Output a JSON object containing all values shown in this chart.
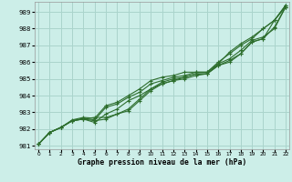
{
  "xlabel": "Graphe pression niveau de la mer (hPa)",
  "background_color": "#cceee8",
  "grid_color": "#aad4cc",
  "line_color": "#2d6e2d",
  "xlim": [
    -0.3,
    22.3
  ],
  "ylim": [
    980.8,
    989.6
  ],
  "yticks": [
    981,
    982,
    983,
    984,
    985,
    986,
    987,
    988,
    989
  ],
  "xticks": [
    0,
    1,
    2,
    3,
    4,
    5,
    6,
    7,
    8,
    9,
    10,
    11,
    12,
    13,
    14,
    15,
    16,
    17,
    18,
    19,
    20,
    21,
    22
  ],
  "series": [
    [
      981.1,
      981.8,
      982.1,
      982.5,
      982.6,
      982.7,
      982.7,
      982.9,
      983.2,
      983.8,
      984.4,
      984.7,
      984.9,
      985.1,
      985.3,
      985.3,
      985.8,
      986.0,
      986.5,
      987.2,
      987.4,
      988.5,
      989.3
    ],
    [
      981.1,
      981.8,
      982.1,
      982.5,
      982.6,
      982.5,
      982.6,
      982.9,
      983.1,
      983.7,
      984.3,
      984.7,
      984.9,
      985.0,
      985.2,
      985.3,
      985.8,
      986.1,
      986.5,
      987.2,
      987.4,
      988.1,
      989.3
    ],
    [
      981.1,
      981.8,
      982.1,
      982.5,
      982.6,
      982.4,
      982.9,
      983.2,
      983.7,
      984.0,
      984.4,
      984.8,
      985.0,
      985.1,
      985.3,
      985.3,
      985.9,
      986.2,
      986.7,
      987.3,
      987.5,
      988.0,
      989.3
    ],
    [
      981.1,
      981.8,
      982.1,
      982.5,
      982.65,
      982.55,
      983.3,
      983.5,
      983.9,
      984.2,
      984.7,
      984.9,
      985.1,
      985.2,
      985.4,
      985.4,
      986.0,
      986.5,
      987.0,
      987.4,
      988.0,
      988.5,
      989.4
    ],
    [
      981.1,
      981.8,
      982.1,
      982.55,
      982.7,
      982.65,
      983.4,
      983.6,
      984.0,
      984.4,
      984.9,
      985.1,
      985.2,
      985.4,
      985.4,
      985.4,
      985.9,
      986.6,
      987.1,
      987.5,
      988.0,
      988.5,
      989.4
    ]
  ]
}
